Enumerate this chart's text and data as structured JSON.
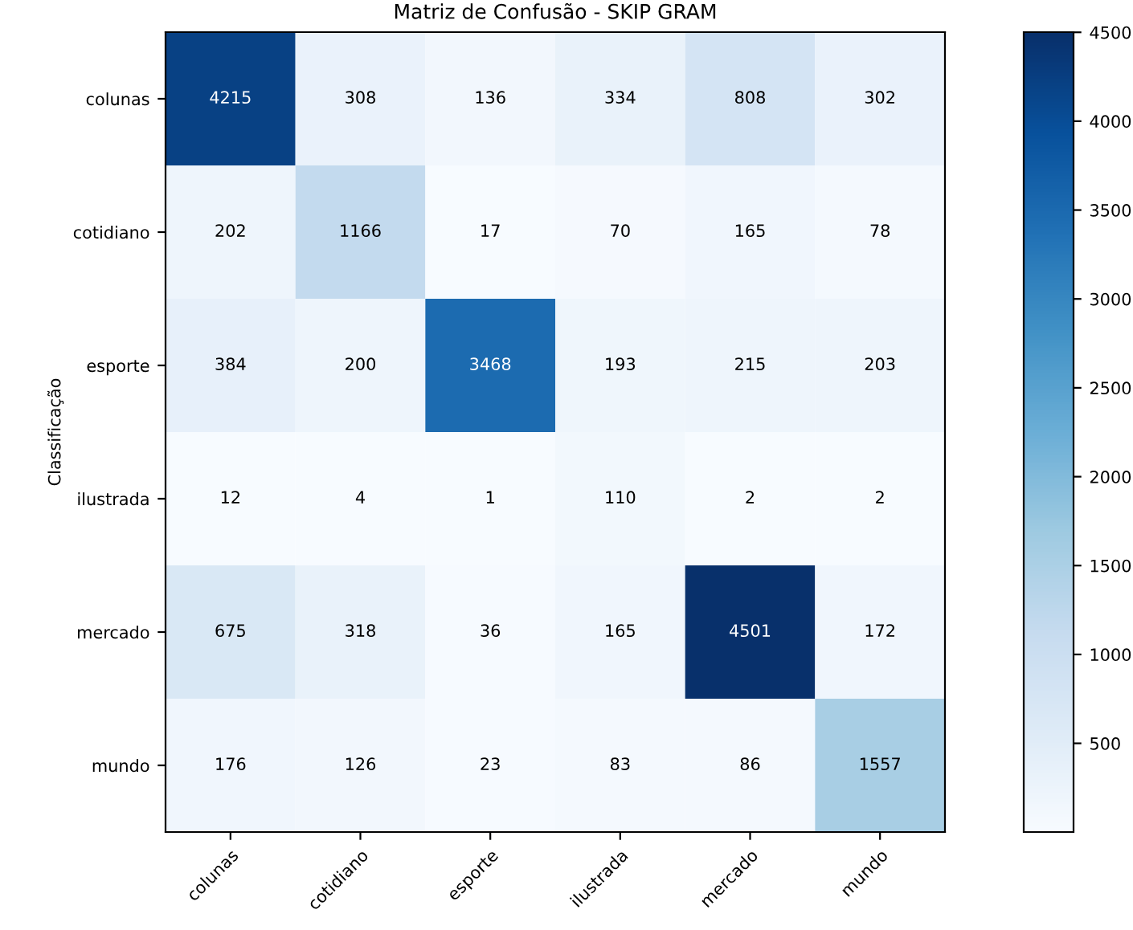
{
  "chart_data": {
    "type": "heatmap",
    "title": "Matriz de Confusão - SKIP GRAM",
    "ylabel": "Classificação",
    "categories": [
      "colunas",
      "cotidiano",
      "esporte",
      "ilustrada",
      "mercado",
      "mundo"
    ],
    "y_categories": [
      "colunas",
      "cotidiano",
      "esporte",
      "ilustrada",
      "mercado",
      "mundo"
    ],
    "cells": [
      [
        4215,
        308,
        136,
        334,
        808,
        302
      ],
      [
        202,
        1166,
        17,
        70,
        165,
        78
      ],
      [
        384,
        200,
        3468,
        193,
        215,
        203
      ],
      [
        12,
        4,
        1,
        110,
        2,
        2
      ],
      [
        675,
        318,
        36,
        165,
        4501,
        172
      ],
      [
        176,
        126,
        23,
        83,
        86,
        1557
      ]
    ],
    "clim": [
      1,
      4501
    ],
    "cticks": [
      500,
      1000,
      1500,
      2000,
      2500,
      3000,
      3500,
      4000,
      4500
    ],
    "data_labels": true,
    "grid": false
  }
}
